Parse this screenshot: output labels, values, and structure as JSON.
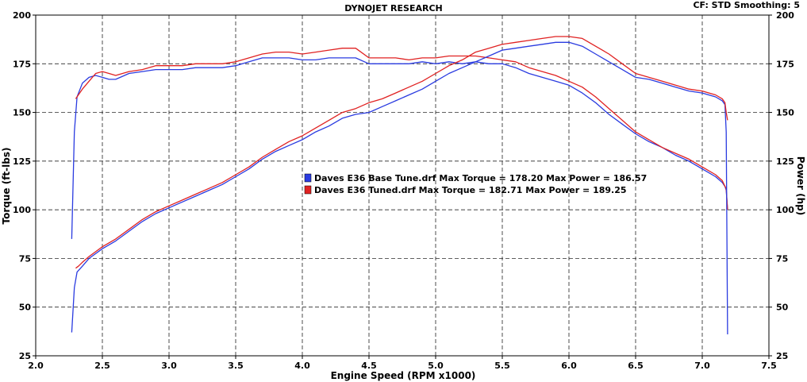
{
  "header": {
    "title": "DYNOJET RESEARCH",
    "settings": "CF: STD   Smoothing: 5"
  },
  "colors": {
    "base": "#2a3be0",
    "tuned": "#e02222",
    "grid": "#000000",
    "plot_bg": "#ffffff"
  },
  "chart_data": {
    "type": "line",
    "title": "DYNOJET RESEARCH",
    "xlabel": "Engine Speed (RPM x1000)",
    "ylabel": "Torque (ft-lbs)",
    "y2label": "Power (hp)",
    "xlim": [
      2.0,
      7.5
    ],
    "ylim": [
      25,
      200
    ],
    "y2lim": [
      25,
      200
    ],
    "x_ticks": [
      "2.0",
      "2.5",
      "3.0",
      "3.5",
      "4.0",
      "4.5",
      "5.0",
      "5.5",
      "6.0",
      "6.5",
      "7.0",
      "7.5"
    ],
    "y_ticks": [
      "25",
      "50",
      "75",
      "100",
      "125",
      "150",
      "175",
      "200"
    ],
    "y2_ticks": [
      "25",
      "50",
      "75",
      "100",
      "125",
      "150",
      "175",
      "200"
    ],
    "grid": true,
    "legend_position": "center",
    "legend": [
      {
        "text": "Daves E36 Base Tune.drf Max Torque = 178.20     Max Power = 186.57",
        "color": "#2a3be0"
      },
      {
        "text": "Daves E36 Tuned.drf Max Torque = 182.71     Max Power = 189.25",
        "color": "#e02222"
      }
    ],
    "series": [
      {
        "name": "Daves E36 Base Tune.drf",
        "metric": "torque",
        "color": "#2a3be0",
        "x": [
          2.27,
          2.29,
          2.31,
          2.35,
          2.4,
          2.45,
          2.5,
          2.55,
          2.6,
          2.7,
          2.8,
          2.9,
          3.0,
          3.1,
          3.2,
          3.3,
          3.4,
          3.5,
          3.6,
          3.7,
          3.8,
          3.9,
          4.0,
          4.1,
          4.2,
          4.3,
          4.4,
          4.5,
          4.6,
          4.7,
          4.8,
          4.9,
          5.0,
          5.1,
          5.2,
          5.3,
          5.4,
          5.5,
          5.6,
          5.7,
          5.8,
          5.9,
          6.0,
          6.1,
          6.2,
          6.3,
          6.4,
          6.5,
          6.6,
          6.7,
          6.8,
          6.9,
          7.0,
          7.1,
          7.15,
          7.17,
          7.18,
          7.19
        ],
        "y": [
          85,
          140,
          158,
          165,
          168,
          169,
          168,
          167,
          167,
          170,
          171,
          172,
          172,
          172,
          173,
          173,
          173,
          174,
          176,
          178,
          178,
          178,
          177,
          177,
          178,
          178,
          178,
          175,
          175,
          175,
          175,
          176,
          175,
          176,
          175,
          176,
          175,
          175,
          173,
          170,
          168,
          166,
          164,
          160,
          155,
          149,
          144,
          139,
          135,
          132,
          128,
          125,
          121,
          117,
          114,
          112,
          110,
          100
        ]
      },
      {
        "name": "Daves E36 Tuned.drf",
        "metric": "torque",
        "color": "#e02222",
        "x": [
          2.3,
          2.32,
          2.35,
          2.4,
          2.45,
          2.5,
          2.55,
          2.6,
          2.7,
          2.8,
          2.9,
          3.0,
          3.1,
          3.2,
          3.3,
          3.4,
          3.5,
          3.6,
          3.7,
          3.8,
          3.9,
          4.0,
          4.1,
          4.2,
          4.3,
          4.4,
          4.5,
          4.6,
          4.7,
          4.8,
          4.9,
          5.0,
          5.1,
          5.2,
          5.3,
          5.4,
          5.5,
          5.6,
          5.7,
          5.8,
          5.9,
          6.0,
          6.1,
          6.2,
          6.3,
          6.4,
          6.5,
          6.6,
          6.7,
          6.8,
          6.9,
          7.0,
          7.1,
          7.15,
          7.17,
          7.18,
          7.19
        ],
        "y": [
          157,
          159,
          162,
          166,
          170,
          171,
          170,
          169,
          171,
          172,
          174,
          174,
          174,
          175,
          175,
          175,
          176,
          178,
          180,
          181,
          181,
          180,
          181,
          182,
          183,
          183,
          178,
          178,
          178,
          177,
          178,
          178,
          179,
          179,
          179,
          178,
          177,
          176,
          173,
          171,
          169,
          166,
          163,
          158,
          152,
          146,
          140,
          136,
          132,
          129,
          126,
          122,
          118,
          115,
          112,
          111,
          100
        ]
      },
      {
        "name": "Daves E36 Base Tune.drf",
        "metric": "power",
        "color": "#2a3be0",
        "x": [
          2.27,
          2.29,
          2.31,
          2.35,
          2.4,
          2.5,
          2.6,
          2.7,
          2.8,
          2.9,
          3.0,
          3.1,
          3.2,
          3.3,
          3.4,
          3.5,
          3.6,
          3.7,
          3.8,
          3.9,
          4.0,
          4.1,
          4.2,
          4.3,
          4.4,
          4.5,
          4.6,
          4.7,
          4.8,
          4.9,
          5.0,
          5.1,
          5.2,
          5.3,
          5.4,
          5.5,
          5.6,
          5.7,
          5.8,
          5.9,
          6.0,
          6.1,
          6.2,
          6.3,
          6.4,
          6.5,
          6.6,
          6.7,
          6.8,
          6.9,
          7.0,
          7.1,
          7.15,
          7.17,
          7.18,
          7.19
        ],
        "y": [
          37,
          60,
          68,
          71,
          75,
          80,
          84,
          89,
          94,
          98,
          101,
          104,
          107,
          110,
          113,
          117,
          121,
          126,
          130,
          133,
          136,
          140,
          143,
          147,
          149,
          150,
          153,
          156,
          159,
          162,
          166,
          170,
          173,
          176,
          179,
          182,
          183,
          184,
          185,
          186,
          186,
          184,
          180,
          176,
          172,
          168,
          167,
          165,
          163,
          161,
          160,
          158,
          156,
          154,
          140,
          36
        ]
      },
      {
        "name": "Daves E36 Tuned.drf",
        "metric": "power",
        "color": "#e02222",
        "x": [
          2.3,
          2.32,
          2.35,
          2.4,
          2.5,
          2.6,
          2.7,
          2.8,
          2.9,
          3.0,
          3.1,
          3.2,
          3.3,
          3.4,
          3.5,
          3.6,
          3.7,
          3.8,
          3.9,
          4.0,
          4.1,
          4.2,
          4.3,
          4.4,
          4.5,
          4.6,
          4.7,
          4.8,
          4.9,
          5.0,
          5.1,
          5.2,
          5.3,
          5.4,
          5.5,
          5.6,
          5.7,
          5.8,
          5.9,
          6.0,
          6.1,
          6.2,
          6.3,
          6.4,
          6.5,
          6.6,
          6.7,
          6.8,
          6.9,
          7.0,
          7.1,
          7.15,
          7.17,
          7.18,
          7.19
        ],
        "y": [
          70,
          71,
          73,
          76,
          81,
          85,
          90,
          95,
          99,
          102,
          105,
          108,
          111,
          114,
          118,
          122,
          127,
          131,
          135,
          138,
          142,
          146,
          150,
          152,
          155,
          157,
          160,
          163,
          166,
          170,
          174,
          177,
          181,
          183,
          185,
          186,
          187,
          188,
          189,
          189,
          188,
          184,
          180,
          175,
          170,
          168,
          166,
          164,
          162,
          161,
          159,
          157,
          155,
          150,
          146
        ]
      }
    ]
  }
}
